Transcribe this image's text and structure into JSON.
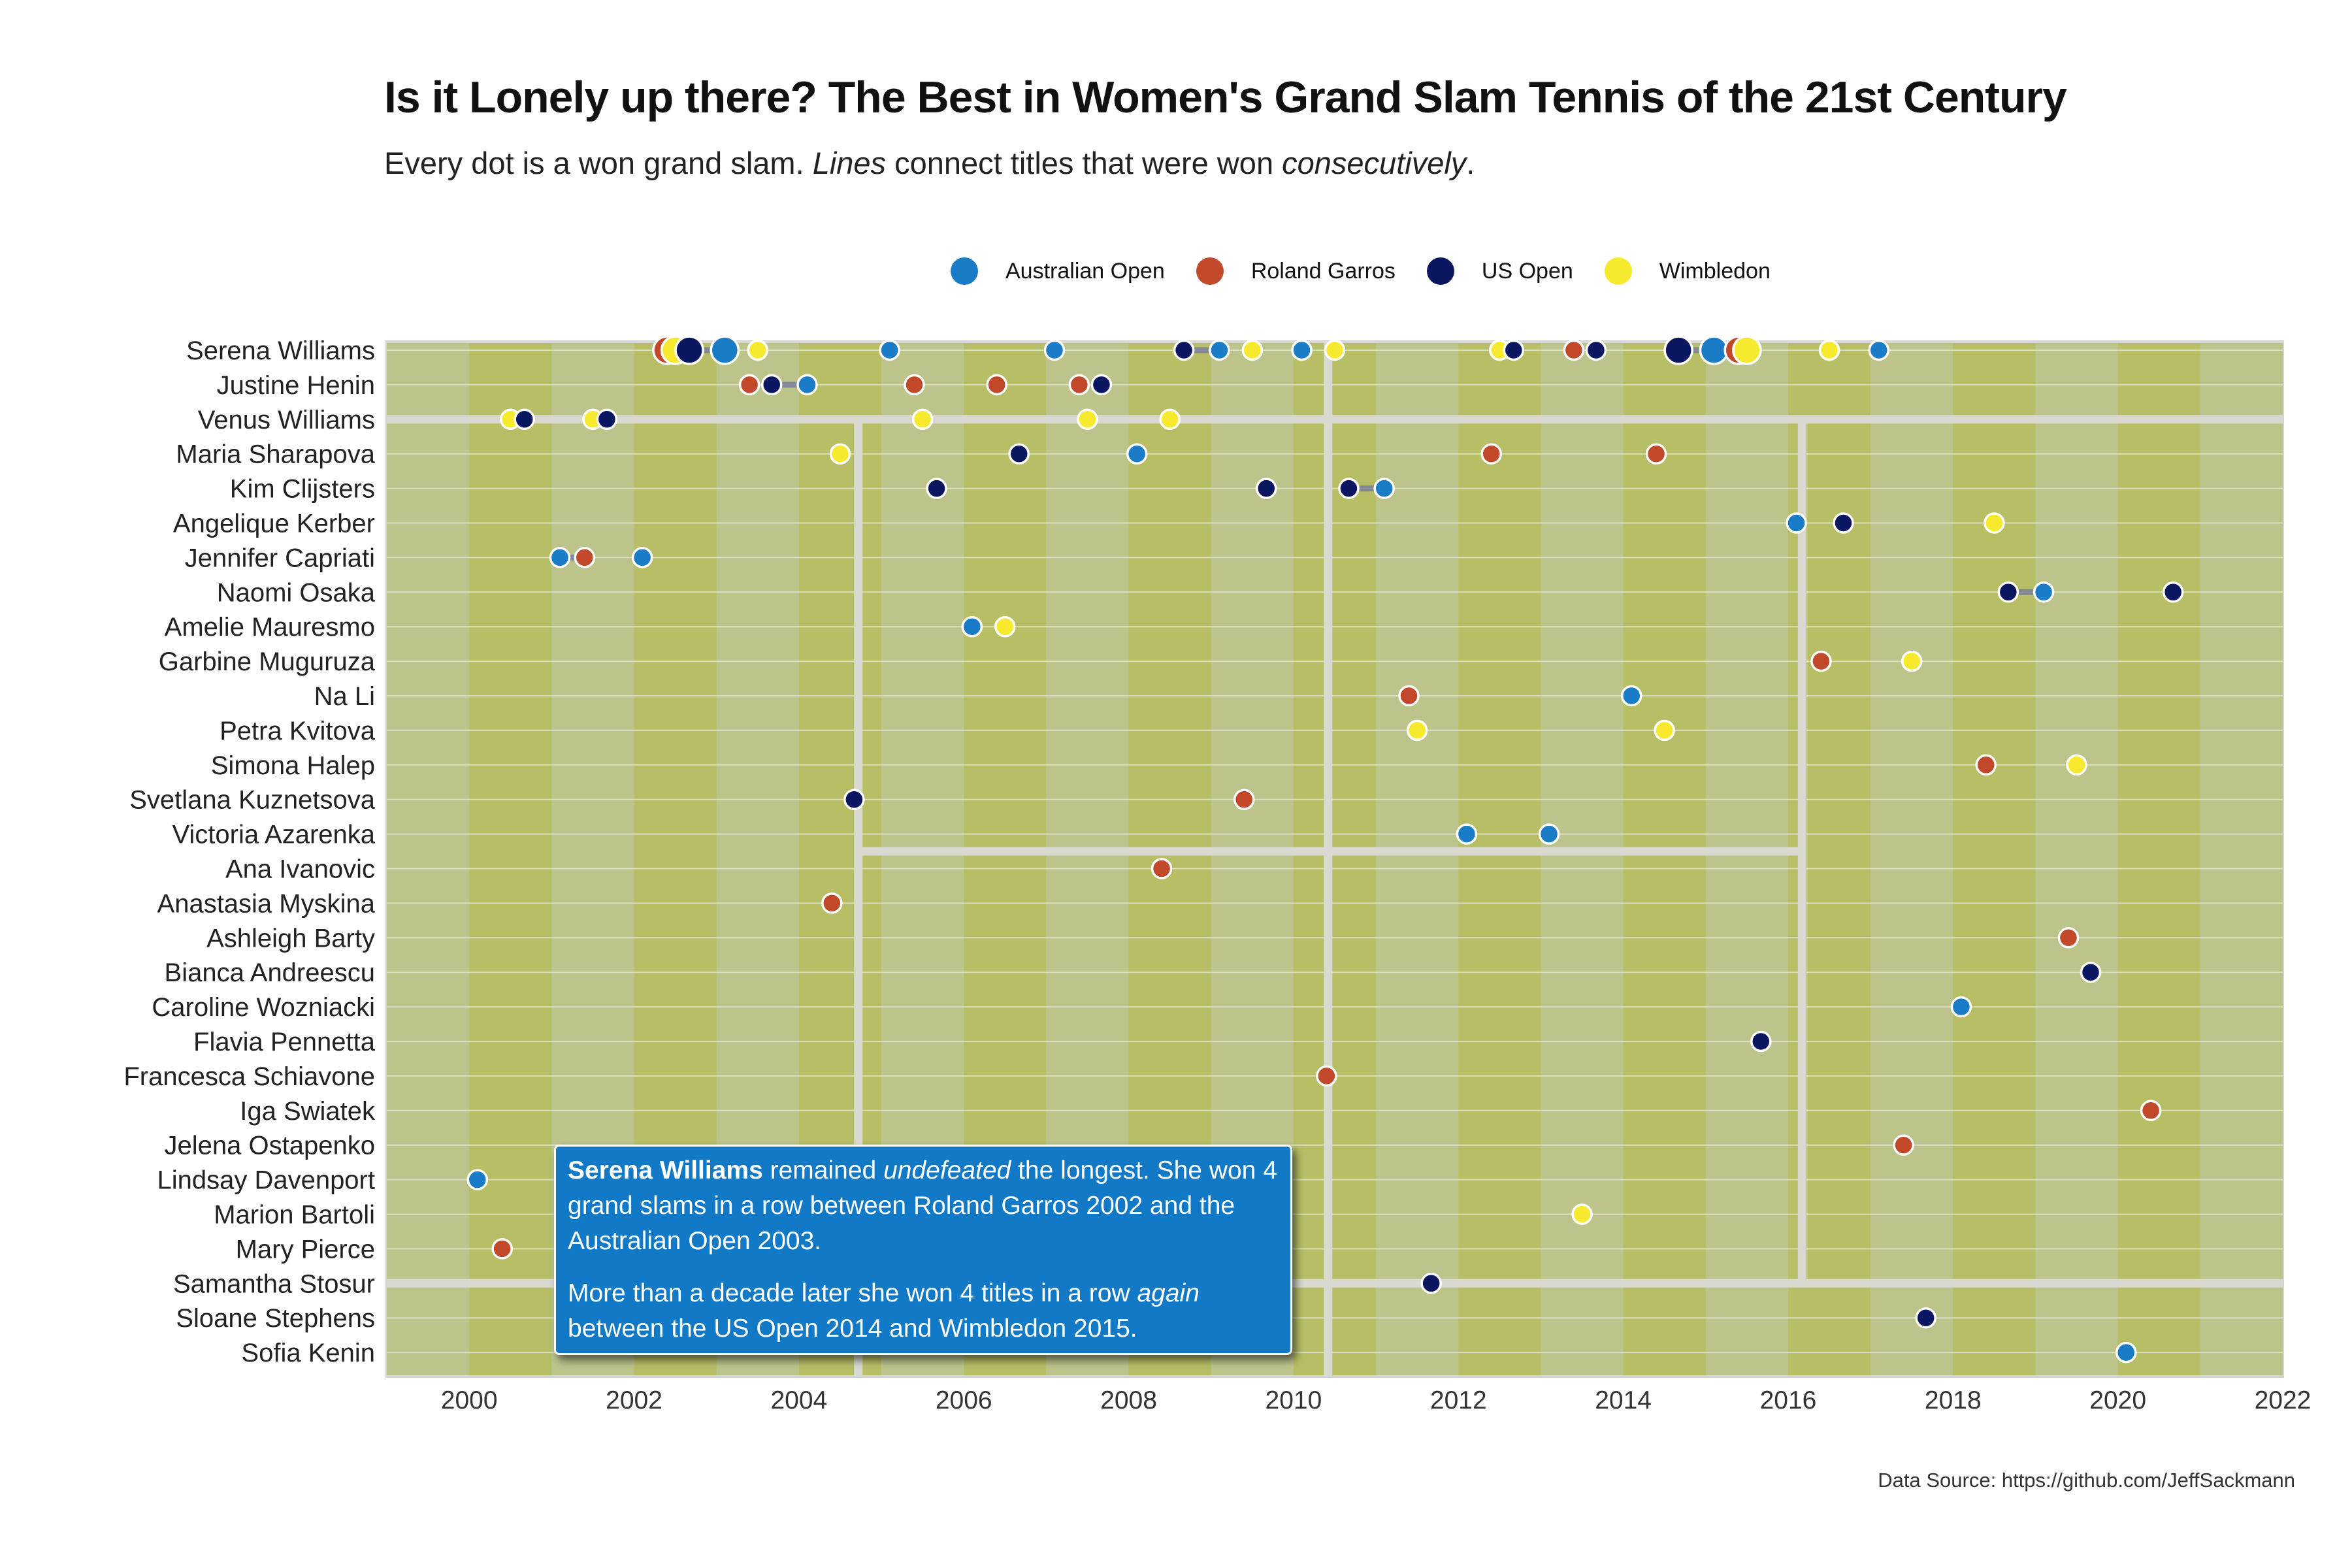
{
  "title": "Is it Lonely up there? The Best in Women's Grand Slam Tennis of the 21st Century",
  "subtitle": {
    "part1": "Every dot is a won grand slam. ",
    "em1": "Lines",
    "part2": " connect titles that were won ",
    "em2": "consecutively",
    "part3": "."
  },
  "caption": "Data Source: https://github.com/JeffSackmann",
  "annotation": {
    "strong": "Serena Williams",
    "p1_a": " remained ",
    "p1_em": "undefeated",
    "p1_b": " the longest. She won 4 grand slams in a row between Roland Garros 2002 and the Australian Open 2003.",
    "p2_a": "More than a decade later she won 4 titles in a row ",
    "p2_em": "again",
    "p2_b": " between the US Open 2014 and Wimbledon 2015."
  },
  "colors": {
    "Australian Open": "#1a7cc7",
    "Roland Garros": "#c1492a",
    "US Open": "#0b1660",
    "Wimbledon": "#f7ea2e",
    "panel_light": "#bcc38b",
    "panel_dark": "#b7be66",
    "separator": "#d9d9d2"
  },
  "chart_data": {
    "type": "scatter",
    "title": "Is it Lonely up there? The Best in Women's Grand Slam Tennis of the 21st Century",
    "xlabel": "",
    "ylabel": "",
    "xlim": [
      1999,
      2022
    ],
    "xticks": [
      2000,
      2002,
      2004,
      2006,
      2008,
      2010,
      2012,
      2014,
      2016,
      2018,
      2020,
      2022
    ],
    "legend_position": "top",
    "legend": [
      "Australian Open",
      "Roland Garros",
      "US Open",
      "Wimbledon"
    ],
    "players": [
      "Serena Williams",
      "Justine Henin",
      "Venus Williams",
      "Maria Sharapova",
      "Kim Clijsters",
      "Angelique Kerber",
      "Jennifer Capriati",
      "Naomi Osaka",
      "Amelie Mauresmo",
      "Garbine Muguruza",
      "Na Li",
      "Petra Kvitova",
      "Simona Halep",
      "Svetlana Kuznetsova",
      "Victoria Azarenka",
      "Ana Ivanovic",
      "Anastasia Myskina",
      "Ashleigh Barty",
      "Bianca Andreescu",
      "Caroline Wozniacki",
      "Flavia Pennetta",
      "Francesca Schiavone",
      "Iga Swiatek",
      "Jelena Ostapenko",
      "Lindsay Davenport",
      "Marion Bartoli",
      "Mary Pierce",
      "Samantha Stosur",
      "Sloane Stephens",
      "Sofia Kenin"
    ],
    "series": [
      {
        "name": "Serena Williams",
        "titles": [
          {
            "year": 2002,
            "slam": "Roland Garros"
          },
          {
            "year": 2002,
            "slam": "Wimbledon"
          },
          {
            "year": 2002,
            "slam": "US Open"
          },
          {
            "year": 2003,
            "slam": "Australian Open"
          },
          {
            "year": 2003,
            "slam": "Wimbledon"
          },
          {
            "year": 2005,
            "slam": "Australian Open"
          },
          {
            "year": 2007,
            "slam": "Australian Open"
          },
          {
            "year": 2008,
            "slam": "US Open"
          },
          {
            "year": 2009,
            "slam": "Australian Open"
          },
          {
            "year": 2009,
            "slam": "Wimbledon"
          },
          {
            "year": 2010,
            "slam": "Australian Open"
          },
          {
            "year": 2010,
            "slam": "Wimbledon"
          },
          {
            "year": 2012,
            "slam": "Wimbledon"
          },
          {
            "year": 2012,
            "slam": "US Open"
          },
          {
            "year": 2013,
            "slam": "Roland Garros"
          },
          {
            "year": 2013,
            "slam": "US Open"
          },
          {
            "year": 2014,
            "slam": "US Open"
          },
          {
            "year": 2015,
            "slam": "Australian Open"
          },
          {
            "year": 2015,
            "slam": "Roland Garros"
          },
          {
            "year": 2015,
            "slam": "Wimbledon"
          },
          {
            "year": 2016,
            "slam": "Wimbledon"
          },
          {
            "year": 2017,
            "slam": "Australian Open"
          }
        ]
      },
      {
        "name": "Justine Henin",
        "titles": [
          {
            "year": 2003,
            "slam": "Roland Garros"
          },
          {
            "year": 2003,
            "slam": "US Open"
          },
          {
            "year": 2004,
            "slam": "Australian Open"
          },
          {
            "year": 2005,
            "slam": "Roland Garros"
          },
          {
            "year": 2006,
            "slam": "Roland Garros"
          },
          {
            "year": 2007,
            "slam": "Roland Garros"
          },
          {
            "year": 2007,
            "slam": "US Open"
          }
        ]
      },
      {
        "name": "Venus Williams",
        "titles": [
          {
            "year": 2000,
            "slam": "Wimbledon"
          },
          {
            "year": 2000,
            "slam": "US Open"
          },
          {
            "year": 2001,
            "slam": "Wimbledon"
          },
          {
            "year": 2001,
            "slam": "US Open"
          },
          {
            "year": 2005,
            "slam": "Wimbledon"
          },
          {
            "year": 2007,
            "slam": "Wimbledon"
          },
          {
            "year": 2008,
            "slam": "Wimbledon"
          }
        ]
      },
      {
        "name": "Maria Sharapova",
        "titles": [
          {
            "year": 2004,
            "slam": "Wimbledon"
          },
          {
            "year": 2006,
            "slam": "US Open"
          },
          {
            "year": 2008,
            "slam": "Australian Open"
          },
          {
            "year": 2012,
            "slam": "Roland Garros"
          },
          {
            "year": 2014,
            "slam": "Roland Garros"
          }
        ]
      },
      {
        "name": "Kim Clijsters",
        "titles": [
          {
            "year": 2005,
            "slam": "US Open"
          },
          {
            "year": 2009,
            "slam": "US Open"
          },
          {
            "year": 2010,
            "slam": "US Open"
          },
          {
            "year": 2011,
            "slam": "Australian Open"
          }
        ]
      },
      {
        "name": "Angelique Kerber",
        "titles": [
          {
            "year": 2016,
            "slam": "Australian Open"
          },
          {
            "year": 2016,
            "slam": "US Open"
          },
          {
            "year": 2018,
            "slam": "Wimbledon"
          }
        ]
      },
      {
        "name": "Jennifer Capriati",
        "titles": [
          {
            "year": 2001,
            "slam": "Australian Open"
          },
          {
            "year": 2001,
            "slam": "Roland Garros"
          },
          {
            "year": 2002,
            "slam": "Australian Open"
          }
        ]
      },
      {
        "name": "Naomi Osaka",
        "titles": [
          {
            "year": 2018,
            "slam": "US Open"
          },
          {
            "year": 2019,
            "slam": "Australian Open"
          },
          {
            "year": 2020,
            "slam": "US Open"
          }
        ]
      },
      {
        "name": "Amelie Mauresmo",
        "titles": [
          {
            "year": 2006,
            "slam": "Australian Open"
          },
          {
            "year": 2006,
            "slam": "Wimbledon"
          }
        ]
      },
      {
        "name": "Garbine Muguruza",
        "titles": [
          {
            "year": 2016,
            "slam": "Roland Garros"
          },
          {
            "year": 2017,
            "slam": "Wimbledon"
          }
        ]
      },
      {
        "name": "Na Li",
        "titles": [
          {
            "year": 2011,
            "slam": "Roland Garros"
          },
          {
            "year": 2014,
            "slam": "Australian Open"
          }
        ]
      },
      {
        "name": "Petra Kvitova",
        "titles": [
          {
            "year": 2011,
            "slam": "Wimbledon"
          },
          {
            "year": 2014,
            "slam": "Wimbledon"
          }
        ]
      },
      {
        "name": "Simona Halep",
        "titles": [
          {
            "year": 2018,
            "slam": "Roland Garros"
          },
          {
            "year": 2019,
            "slam": "Wimbledon"
          }
        ]
      },
      {
        "name": "Svetlana Kuznetsova",
        "titles": [
          {
            "year": 2004,
            "slam": "US Open"
          },
          {
            "year": 2009,
            "slam": "Roland Garros"
          }
        ]
      },
      {
        "name": "Victoria Azarenka",
        "titles": [
          {
            "year": 2012,
            "slam": "Australian Open"
          },
          {
            "year": 2013,
            "slam": "Australian Open"
          }
        ]
      },
      {
        "name": "Ana Ivanovic",
        "titles": [
          {
            "year": 2008,
            "slam": "Roland Garros"
          }
        ]
      },
      {
        "name": "Anastasia Myskina",
        "titles": [
          {
            "year": 2004,
            "slam": "Roland Garros"
          }
        ]
      },
      {
        "name": "Ashleigh Barty",
        "titles": [
          {
            "year": 2019,
            "slam": "Roland Garros"
          }
        ]
      },
      {
        "name": "Bianca Andreescu",
        "titles": [
          {
            "year": 2019,
            "slam": "US Open"
          }
        ]
      },
      {
        "name": "Caroline Wozniacki",
        "titles": [
          {
            "year": 2018,
            "slam": "Australian Open"
          }
        ]
      },
      {
        "name": "Flavia Pennetta",
        "titles": [
          {
            "year": 2015,
            "slam": "US Open"
          }
        ]
      },
      {
        "name": "Francesca Schiavone",
        "titles": [
          {
            "year": 2010,
            "slam": "Roland Garros"
          }
        ]
      },
      {
        "name": "Iga Swiatek",
        "titles": [
          {
            "year": 2020,
            "slam": "Roland Garros"
          }
        ]
      },
      {
        "name": "Jelena Ostapenko",
        "titles": [
          {
            "year": 2017,
            "slam": "Roland Garros"
          }
        ]
      },
      {
        "name": "Lindsay Davenport",
        "titles": [
          {
            "year": 2000,
            "slam": "Australian Open"
          }
        ]
      },
      {
        "name": "Marion Bartoli",
        "titles": [
          {
            "year": 2013,
            "slam": "Wimbledon"
          }
        ]
      },
      {
        "name": "Mary Pierce",
        "titles": [
          {
            "year": 2000,
            "slam": "Roland Garros"
          }
        ]
      },
      {
        "name": "Samantha Stosur",
        "titles": [
          {
            "year": 2011,
            "slam": "US Open"
          }
        ]
      },
      {
        "name": "Sloane Stephens",
        "titles": [
          {
            "year": 2017,
            "slam": "US Open"
          }
        ]
      },
      {
        "name": "Sofia Kenin",
        "titles": [
          {
            "year": 2020,
            "slam": "Australian Open"
          }
        ]
      }
    ],
    "highlight_streaks": [
      {
        "player": "Serena Williams",
        "from": {
          "year": 2002,
          "slam": "Roland Garros"
        },
        "to": {
          "year": 2003,
          "slam": "Australian Open"
        }
      },
      {
        "player": "Serena Williams",
        "from": {
          "year": 2014,
          "slam": "US Open"
        },
        "to": {
          "year": 2015,
          "slam": "Wimbledon"
        }
      }
    ]
  }
}
